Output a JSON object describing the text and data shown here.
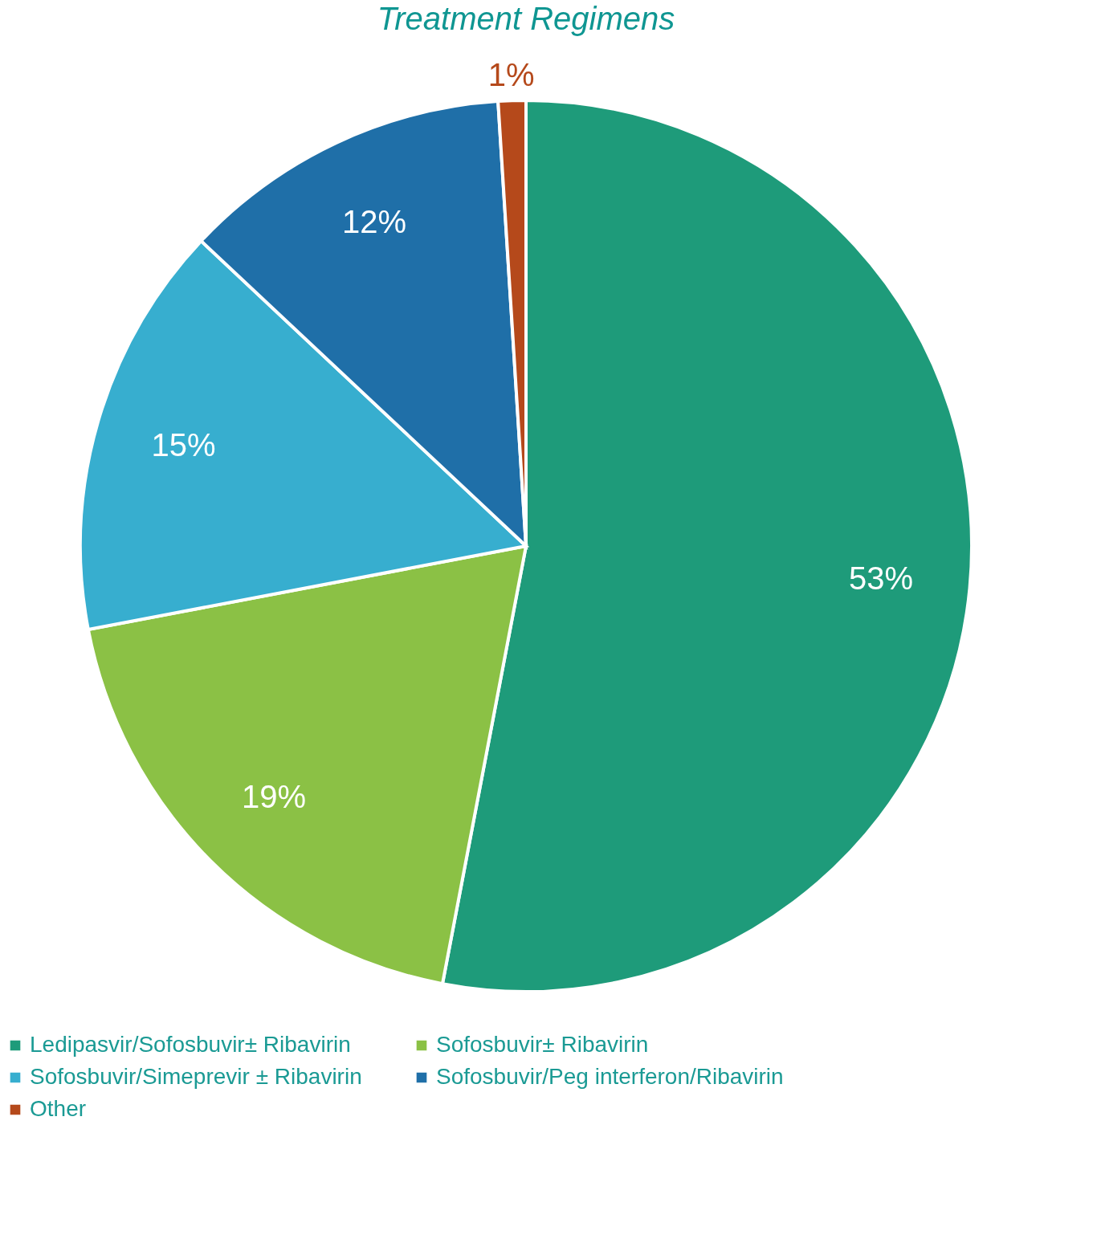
{
  "chart_data": {
    "type": "pie",
    "title": "Treatment Regimens",
    "categories": [
      "Ledipasvir/Sofosbuvir± Ribavirin",
      "Sofosbuvir± Ribavirin",
      "Sofosbuvir/Simeprevir ± Ribavirin",
      "Sofosbuvir/Peg interferon/Ribavirin",
      "Other"
    ],
    "values": [
      53,
      19,
      15,
      12,
      1
    ],
    "value_labels": [
      "53%",
      "19%",
      "15%",
      "12%",
      "1%"
    ],
    "colors": [
      "#1e9b7a",
      "#8bc145",
      "#37aecf",
      "#1f6fa8",
      "#b5491b"
    ],
    "legend": "bottom"
  }
}
